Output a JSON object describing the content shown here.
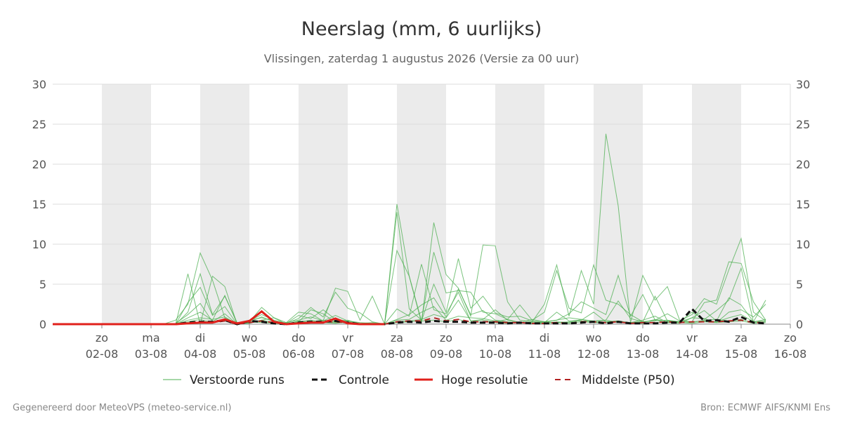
{
  "colors": {
    "weekend_band": "#ebebeb",
    "grid": "#dddddd",
    "ensemble": "#4caf50",
    "control": "#111111",
    "high_res": "#e0201b",
    "median": "#b22222"
  },
  "chart_data": {
    "type": "line",
    "title": "Neerslag (mm, 6 uurlijks)",
    "subtitle": "Vlissingen, zaterdag  1 augustus 2026 (Versie za 00 uur)",
    "ylim": [
      0,
      30
    ],
    "y_ticks": [
      0,
      5,
      10,
      15,
      20,
      25,
      30
    ],
    "x_days": {
      "start": 1.0,
      "end": 16.0,
      "step_hours": 6,
      "weekend_bands": [
        [
          2,
          3
        ],
        [
          4,
          5
        ],
        [
          6,
          7
        ],
        [
          8,
          9
        ],
        [
          10,
          11
        ],
        [
          12,
          13
        ],
        [
          14,
          15
        ]
      ]
    },
    "x_ticks": [
      {
        "day": 2,
        "weekday": "zo",
        "date": "02-08"
      },
      {
        "day": 3,
        "weekday": "ma",
        "date": "03-08"
      },
      {
        "day": 4,
        "weekday": "di",
        "date": "04-08"
      },
      {
        "day": 5,
        "weekday": "wo",
        "date": "05-08"
      },
      {
        "day": 6,
        "weekday": "do",
        "date": "06-08"
      },
      {
        "day": 7,
        "weekday": "vr",
        "date": "07-08"
      },
      {
        "day": 8,
        "weekday": "za",
        "date": "08-08"
      },
      {
        "day": 9,
        "weekday": "zo",
        "date": "09-08"
      },
      {
        "day": 10,
        "weekday": "ma",
        "date": "10-08"
      },
      {
        "day": 11,
        "weekday": "di",
        "date": "11-08"
      },
      {
        "day": 12,
        "weekday": "wo",
        "date": "12-08"
      },
      {
        "day": 13,
        "weekday": "do",
        "date": "13-08"
      },
      {
        "day": 14,
        "weekday": "vr",
        "date": "14-08"
      },
      {
        "day": 15,
        "weekday": "za",
        "date": "15-08"
      },
      {
        "day": 16,
        "weekday": "zo",
        "date": "16-08"
      }
    ],
    "series": [
      {
        "name": "Verstoorde runs",
        "kind": "ensemble",
        "members": [
          [
            0,
            0,
            0,
            0,
            0,
            0,
            0,
            0,
            0,
            0,
            0,
            6.3,
            0,
            6,
            4.7,
            0,
            0.3,
            2.1,
            0.8,
            0.2,
            1.5,
            1.3,
            0.4,
            4.5,
            4.1,
            0.5,
            3.5,
            0,
            15,
            6,
            0.2,
            12.7,
            6.2,
            4.5,
            1,
            9.9,
            9.8,
            2.8,
            0.5,
            0.3,
            2.5,
            7.4,
            1,
            6.7,
            2.5,
            23.8,
            14.8,
            0.2,
            6.1,
            3,
            4.7,
            0.5,
            0.3,
            2.7,
            3,
            7.8,
            7.6,
            2.8,
            0.5
          ],
          [
            0,
            0,
            0,
            0,
            0,
            0,
            0,
            0,
            0,
            0,
            0.5,
            2.5,
            8.9,
            5.5,
            0.8,
            0,
            0.4,
            1.2,
            0.5,
            0.1,
            0.7,
            2.1,
            0.9,
            4,
            2,
            1.4,
            0.3,
            0,
            14,
            1.9,
            0.5,
            9,
            3.9,
            4.2,
            4,
            1.5,
            1.3,
            0.6,
            2.4,
            0.5,
            1.5,
            6.7,
            2,
            1.4,
            7.4,
            3,
            2.5,
            1.2,
            0.3,
            0.5,
            1.3,
            0.4,
            1.2,
            3.2,
            2.5,
            6.8,
            10.7,
            1.5,
            0.4
          ],
          [
            0,
            0,
            0,
            0,
            0,
            0,
            0,
            0,
            0,
            0,
            0,
            1.5,
            6.3,
            1.2,
            3.5,
            0.2,
            0.3,
            0.9,
            0.3,
            0.1,
            1.1,
            0.7,
            1.8,
            0.6,
            0.4,
            0.2,
            0.1,
            0.1,
            9.2,
            6,
            0.4,
            5,
            1.5,
            8.2,
            2,
            3.5,
            1.4,
            0.9,
            1,
            0.4,
            0.3,
            0.5,
            1.3,
            2.8,
            2,
            1.2,
            6.1,
            1,
            3.7,
            0.5,
            0.2,
            0.3,
            0.8,
            1.7,
            0.4,
            3.3,
            2.4,
            0.3,
            3
          ],
          [
            0,
            0,
            0,
            0,
            0,
            0,
            0,
            0,
            0,
            0,
            0,
            2.7,
            4.6,
            1.1,
            2.2,
            0,
            0.2,
            0.5,
            0.2,
            0.2,
            0.5,
            0.9,
            0.4,
            1.1,
            0.4,
            0.1,
            0.2,
            0,
            1.9,
            1,
            7.5,
            1.8,
            1.3,
            4,
            0.4,
            0.6,
            1.8,
            0.5,
            0.2,
            0.6,
            0.3,
            0.5,
            0.8,
            0.6,
            0.4,
            0.5,
            2.9,
            0.7,
            0.3,
            3.5,
            0.4,
            0.3,
            1.5,
            0.6,
            1.7,
            3,
            7,
            0.3,
            0.6
          ],
          [
            0,
            0,
            0,
            0,
            0,
            0,
            0,
            0,
            0,
            0,
            0,
            0.8,
            1.5,
            0.5,
            3.6,
            0.1,
            0.1,
            0.5,
            0.8,
            0,
            0.3,
            1.8,
            1.3,
            0.2,
            0.2,
            0,
            0.1,
            0,
            0.6,
            1.2,
            2.4,
            3.3,
            0.9,
            4.4,
            1.2,
            1.7,
            0.5,
            0.3,
            0.1,
            0.3,
            0.2,
            1.5,
            0.4,
            0.5,
            1.5,
            0.3,
            0.4,
            0.2,
            0.5,
            1,
            0.2,
            0.1,
            0.8,
            0.7,
            0.2,
            1.5,
            1.8,
            0.9,
            2.5
          ],
          [
            0,
            0,
            0,
            0,
            0,
            0,
            0,
            0,
            0,
            0,
            0.1,
            1.2,
            2.6,
            0.3,
            1.3,
            0,
            0.3,
            0.2,
            0.1,
            0,
            0.2,
            0.3,
            0.5,
            0.3,
            0.2,
            0,
            0,
            0,
            0.5,
            0.6,
            1.5,
            2.2,
            0.5,
            1,
            0.8,
            0.7,
            0.4,
            0.2,
            0.2,
            0.1,
            0.3,
            0.2,
            0.3,
            0.4,
            0.3,
            0.5,
            0.2,
            0.2,
            0.3,
            0.4,
            0.5,
            0.3,
            0.3,
            0.4,
            0.3,
            0.8,
            1.2,
            0.3,
            0.4
          ],
          [
            0,
            0,
            0,
            0,
            0,
            0,
            0,
            0,
            0,
            0,
            0,
            0.5,
            0.8,
            0.6,
            0.9,
            0,
            0.5,
            0.8,
            0.4,
            0,
            0.4,
            0.2,
            0.3,
            0.2,
            0.5,
            0,
            0,
            0,
            0.3,
            0.4,
            0.6,
            1.2,
            0.8,
            3,
            0.4,
            0.5,
            0.3,
            0.6,
            0.2,
            0.2,
            0.1,
            0.3,
            0.2,
            0.6,
            0.2,
            0.3,
            0.4,
            0.1,
            0.2,
            0.6,
            0.4,
            0.3,
            0.2,
            0.5,
            0.6,
            0.4,
            0.6,
            0.2,
            0.3
          ],
          [
            0,
            0,
            0,
            0,
            0,
            0,
            0,
            0,
            0,
            0,
            0,
            0.3,
            0.6,
            0.2,
            0.4,
            0,
            0.2,
            0.3,
            0.2,
            0,
            0.3,
            0.5,
            0.2,
            0.1,
            0.3,
            0,
            0,
            0,
            0.2,
            0.3,
            0.4,
            0.5,
            0.3,
            0.6,
            0.2,
            0.3,
            0.2,
            0.1,
            0.2,
            0.1,
            0.1,
            0.2,
            0.1,
            0.3,
            0.2,
            0.2,
            0.3,
            0.1,
            0.1,
            0.2,
            0.3,
            0.2,
            0.1,
            0.3,
            0.2,
            0.3,
            0.4,
            0.1,
            0.2
          ]
        ]
      },
      {
        "name": "Controle",
        "kind": "control",
        "values": [
          0,
          0,
          0,
          0,
          0,
          0,
          0,
          0,
          0,
          0,
          0,
          0.2,
          0.3,
          0.3,
          0.5,
          0,
          0.4,
          0.3,
          0.1,
          0,
          0.2,
          0.3,
          0.3,
          0.4,
          0.2,
          0,
          0,
          0,
          0.2,
          0.3,
          0.2,
          0.4,
          0.3,
          0.3,
          0.2,
          0.2,
          0.2,
          0.1,
          0.2,
          0.1,
          0.1,
          0.1,
          0.1,
          0.2,
          0.3,
          0.1,
          0.3,
          0.1,
          0.1,
          0.1,
          0.2,
          0.2,
          1.9,
          0.4,
          0.5,
          0.3,
          0.9,
          0.2,
          0.1
        ]
      },
      {
        "name": "Hoge resolutie",
        "kind": "highres",
        "values": [
          0,
          0,
          0,
          0,
          0,
          0,
          0,
          0,
          0,
          0,
          0,
          0.1,
          0.2,
          0.2,
          0.6,
          0.1,
          0.4,
          1.6,
          0.3,
          0,
          0.1,
          0.2,
          0.2,
          0.7,
          0.1,
          0,
          0,
          0
        ]
      },
      {
        "name": "Middelste (P50)",
        "kind": "median",
        "values": [
          0,
          0,
          0,
          0,
          0,
          0,
          0,
          0,
          0,
          0,
          0,
          0.2,
          0.3,
          0.2,
          0.4,
          0,
          0.2,
          0.4,
          0.2,
          0,
          0.2,
          0.3,
          0.3,
          0.3,
          0.2,
          0,
          0,
          0,
          0.3,
          0.4,
          0.4,
          0.8,
          0.4,
          0.6,
          0.3,
          0.3,
          0.3,
          0.2,
          0.2,
          0.1,
          0.1,
          0.2,
          0.1,
          0.3,
          0.3,
          0.2,
          0.3,
          0.1,
          0.2,
          0.2,
          0.3,
          0.2,
          0.3,
          0.3,
          0.3,
          0.4,
          0.5,
          0.2,
          0.2
        ]
      }
    ],
    "legend": [
      {
        "label": "Verstoorde runs",
        "kind": "ensemble"
      },
      {
        "label": "Controle",
        "kind": "control"
      },
      {
        "label": "Hoge resolutie",
        "kind": "highres"
      },
      {
        "label": "Middelste (P50)",
        "kind": "median"
      }
    ],
    "legend_position": "bottom-center"
  },
  "footer": {
    "left": "Gegenereerd door MeteoVPS (meteo-service.nl)",
    "right": "Bron: ECMWF AIFS/KNMI Ens"
  }
}
